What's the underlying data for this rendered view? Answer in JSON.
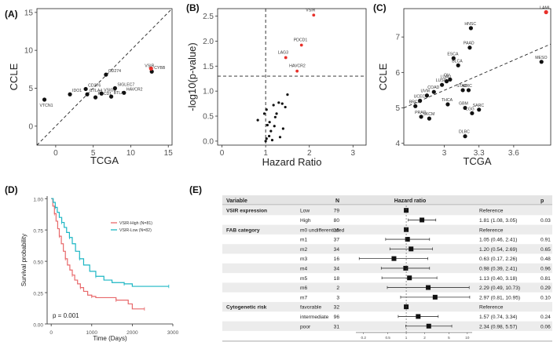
{
  "chart_data": [
    {
      "panel": "(A)",
      "type": "scatter",
      "xlabel": "TCGA",
      "ylabel": "CCLE",
      "xlim": [
        -2.5,
        15.5
      ],
      "ylim": [
        -2.5,
        15.5
      ],
      "xticks": [
        0,
        5,
        10,
        15
      ],
      "yticks": [
        0,
        5,
        10,
        15
      ],
      "diagonal": "y = x (dashed)",
      "points": [
        {
          "label": "VTCN1",
          "x": -1.5,
          "y": 3.5
        },
        {
          "label": "IDO1",
          "x": 1.9,
          "y": 4.2
        },
        {
          "label": "CD276",
          "x": 4.0,
          "y": 4.9
        },
        {
          "label": "CTLA4",
          "x": 4.2,
          "y": 4.2
        },
        {
          "label": "PDCD1",
          "x": 5.3,
          "y": 3.8
        },
        {
          "label": "VSIG4",
          "x": 6.1,
          "y": 4.3
        },
        {
          "label": "CD274",
          "x": 6.7,
          "y": 6.8
        },
        {
          "label": "BTLA",
          "x": 7.4,
          "y": 3.9
        },
        {
          "label": "SIGLEC7",
          "x": 7.9,
          "y": 5.0
        },
        {
          "label": "HAVCR2",
          "x": 9.1,
          "y": 4.4
        },
        {
          "label": "CYBB",
          "x": 12.8,
          "y": 7.2
        },
        {
          "label": "VSIR",
          "x": 12.7,
          "y": 7.6,
          "highlight": true
        }
      ]
    },
    {
      "panel": "(B)",
      "type": "scatter",
      "xlabel": "Hazard Ratio",
      "ylabel": "-log10(p-value)",
      "xlim": [
        -0.1,
        3.3
      ],
      "ylim": [
        -0.08,
        2.65
      ],
      "xticks": [
        0,
        1,
        2,
        3
      ],
      "yticks": [
        0.0,
        0.5,
        1.0,
        1.5,
        2.0,
        2.5
      ],
      "ref_lines": {
        "vertical_x": 1,
        "horizontal_y": 1.3
      },
      "labeled_points": [
        {
          "label": "VSIR",
          "x": 2.1,
          "y": 2.52
        },
        {
          "label": "PDCD1",
          "x": 1.82,
          "y": 1.92
        },
        {
          "label": "LAG3",
          "x": 1.46,
          "y": 1.67
        },
        {
          "label": "HAVCR2",
          "x": 1.72,
          "y": 1.4
        }
      ],
      "points": [
        {
          "x": 1.02,
          "y": 0.63
        },
        {
          "x": 1.04,
          "y": 0.32
        },
        {
          "x": 0.97,
          "y": 0.55
        },
        {
          "x": 1.09,
          "y": 0.38
        },
        {
          "x": 1.12,
          "y": 0.2
        },
        {
          "x": 1.18,
          "y": 0.72
        },
        {
          "x": 1.22,
          "y": 0.48
        },
        {
          "x": 1.2,
          "y": 0.3
        },
        {
          "x": 1.3,
          "y": 0.77
        },
        {
          "x": 1.38,
          "y": 0.75
        },
        {
          "x": 1.45,
          "y": 0.68
        },
        {
          "x": 1.5,
          "y": 0.93
        },
        {
          "x": 1.08,
          "y": 0.1
        },
        {
          "x": 1.02,
          "y": 0.05
        },
        {
          "x": 1.0,
          "y": 0.0
        },
        {
          "x": 1.25,
          "y": 0.55
        },
        {
          "x": 1.15,
          "y": 0.02
        },
        {
          "x": 0.82,
          "y": 0.42
        },
        {
          "x": 1.4,
          "y": 0.25
        },
        {
          "x": 1.33,
          "y": 0.08
        }
      ]
    },
    {
      "panel": "(C)",
      "type": "scatter",
      "xlabel": "TCGA",
      "ylabel": "CCLE",
      "xlim": [
        2.65,
        3.92
      ],
      "ylim": [
        3.95,
        7.8
      ],
      "xticks": [
        3.0,
        3.3,
        3.6
      ],
      "yticks": [
        4,
        5,
        6,
        7
      ],
      "trend_line": {
        "x": [
          2.65,
          3.92
        ],
        "y": [
          5.0,
          6.8
        ]
      },
      "points": [
        {
          "label": "LAML",
          "x": 3.88,
          "y": 7.7,
          "highlight": true
        },
        {
          "label": "HNSC",
          "x": 3.23,
          "y": 7.25
        },
        {
          "label": "PAAD",
          "x": 3.22,
          "y": 6.7
        },
        {
          "label": "MESO",
          "x": 3.84,
          "y": 6.3
        },
        {
          "label": "ESCA",
          "x": 3.08,
          "y": 6.4
        },
        {
          "label": "BLCA",
          "x": 3.12,
          "y": 6.2
        },
        {
          "label": "OV",
          "x": 3.05,
          "y": 5.8
        },
        {
          "label": "LUAD",
          "x": 3.02,
          "y": 5.75
        },
        {
          "label": "LUSC",
          "x": 2.98,
          "y": 5.65
        },
        {
          "label": "UVM",
          "x": 2.85,
          "y": 5.35
        },
        {
          "label": "COAD",
          "x": 2.91,
          "y": 5.45
        },
        {
          "label": "STAD",
          "x": 3.16,
          "y": 5.5
        },
        {
          "label": "KIRC",
          "x": 3.21,
          "y": 5.5
        },
        {
          "label": "UCEC",
          "x": 2.79,
          "y": 5.2
        },
        {
          "label": "BRCA",
          "x": 2.75,
          "y": 5.05
        },
        {
          "label": "THCA",
          "x": 3.03,
          "y": 5.1
        },
        {
          "label": "GBM",
          "x": 3.18,
          "y": 5.0
        },
        {
          "label": "SARC",
          "x": 3.3,
          "y": 4.95
        },
        {
          "label": "LGG",
          "x": 3.24,
          "y": 4.85
        },
        {
          "label": "PRAD",
          "x": 2.8,
          "y": 4.75
        },
        {
          "label": "SKCM",
          "x": 2.87,
          "y": 4.7
        },
        {
          "label": "DLBC",
          "x": 3.18,
          "y": 4.2
        }
      ]
    },
    {
      "panel": "(D)",
      "type": "line",
      "subtype": "kaplan-meier",
      "xlabel": "Time (Days)",
      "ylabel": "Survival probability",
      "xlim": [
        -100,
        3000
      ],
      "ylim": [
        0,
        1.02
      ],
      "xticks": [
        0,
        1000,
        2000,
        3000
      ],
      "yticks": [
        0.0,
        0.25,
        0.5,
        0.75,
        1.0
      ],
      "yticklabels": [
        "0.00",
        "0.25",
        "0.50",
        "0.75",
        "1.00"
      ],
      "annotation": "p = 0.001",
      "series": [
        {
          "name": "VSIR-High (N=81)",
          "color": "#e8696b",
          "x": [
            0,
            40,
            80,
            120,
            160,
            200,
            250,
            300,
            350,
            400,
            460,
            520,
            580,
            650,
            720,
            800,
            900,
            1000,
            1100,
            1300,
            1600,
            1900,
            2000,
            2300
          ],
          "y": [
            1.0,
            0.94,
            0.88,
            0.82,
            0.76,
            0.7,
            0.64,
            0.58,
            0.52,
            0.47,
            0.43,
            0.39,
            0.35,
            0.32,
            0.29,
            0.26,
            0.23,
            0.22,
            0.21,
            0.21,
            0.19,
            0.16,
            0.12,
            0.12
          ]
        },
        {
          "name": "VSIR-Low (N=82)",
          "color": "#1bb6c4",
          "x": [
            0,
            50,
            100,
            150,
            200,
            260,
            320,
            380,
            450,
            520,
            600,
            700,
            800,
            950,
            1100,
            1300,
            1500,
            1800,
            2000,
            2300,
            2900
          ],
          "y": [
            1.0,
            0.97,
            0.93,
            0.89,
            0.85,
            0.81,
            0.77,
            0.73,
            0.69,
            0.64,
            0.58,
            0.52,
            0.47,
            0.42,
            0.38,
            0.35,
            0.33,
            0.32,
            0.3,
            0.3,
            0.3
          ]
        }
      ]
    },
    {
      "panel": "(E)",
      "type": "table",
      "subtype": "forest",
      "headers": {
        "variable": "Variable",
        "n": "N",
        "hr": "Hazard ratio",
        "p": "p"
      },
      "xaxis_ticks": [
        "0.2",
        "0.5",
        "1",
        "2",
        "5",
        "10"
      ],
      "rows": [
        {
          "variable": "VSIR expression",
          "level": "Low",
          "n": "79",
          "hr": 1.0,
          "text": "Reference",
          "p": ""
        },
        {
          "variable": "",
          "level": "High",
          "n": "80",
          "hr": 1.81,
          "lo": 1.08,
          "hi": 3.05,
          "text": "1.81 (1.08, 3.05)",
          "p": "0.03"
        },
        {
          "variable": "FAB category",
          "level": "m0 undifferentiated",
          "n": "15",
          "hr": 1.0,
          "text": "Reference",
          "p": ""
        },
        {
          "variable": "",
          "level": "m1",
          "n": "37",
          "hr": 1.05,
          "lo": 0.46,
          "hi": 2.41,
          "text": "1.05 (0.46, 2.41)",
          "p": "0.91"
        },
        {
          "variable": "",
          "level": "m2",
          "n": "34",
          "hr": 1.2,
          "lo": 0.54,
          "hi": 2.69,
          "text": "1.20 (0.54, 2.69)",
          "p": "0.65"
        },
        {
          "variable": "",
          "level": "m3",
          "n": "16",
          "hr": 0.63,
          "lo": 0.17,
          "hi": 2.26,
          "text": "0.63 (0.17, 2.26)",
          "p": "0.48"
        },
        {
          "variable": "",
          "level": "m4",
          "n": "34",
          "hr": 0.98,
          "lo": 0.39,
          "hi": 2.41,
          "text": "0.98 (0.39, 2.41)",
          "p": "0.96"
        },
        {
          "variable": "",
          "level": "m5",
          "n": "18",
          "hr": 1.13,
          "lo": 0.4,
          "hi": 3.18,
          "text": "1.13 (0.40, 3.18)",
          "p": "0.81"
        },
        {
          "variable": "",
          "level": "m6",
          "n": "2",
          "hr": 2.29,
          "lo": 0.49,
          "hi": 10.73,
          "text": "2.29 (0.49, 10.73)",
          "p": "0.29"
        },
        {
          "variable": "",
          "level": "m7",
          "n": "3",
          "hr": 2.97,
          "lo": 0.81,
          "hi": 10.95,
          "text": "2.97 (0.81, 10.95)",
          "p": "0.10"
        },
        {
          "variable": "Cytogenetic risk",
          "level": "favorable",
          "n": "32",
          "hr": 1.0,
          "text": "Reference",
          "p": ""
        },
        {
          "variable": "",
          "level": "intermediate",
          "n": "96",
          "hr": 1.57,
          "lo": 0.74,
          "hi": 3.34,
          "text": "1.57 (0.74, 3.34)",
          "p": "0.24"
        },
        {
          "variable": "",
          "level": "poor",
          "n": "31",
          "hr": 2.34,
          "lo": 0.98,
          "hi": 5.57,
          "text": "2.34 (0.98, 5.57)",
          "p": "0.06"
        }
      ]
    }
  ],
  "colors": {
    "highlight": "#e8302a",
    "point": "#111111",
    "km_high": "#e8696b",
    "km_low": "#1bb6c4",
    "row_shade": "#ececec"
  }
}
